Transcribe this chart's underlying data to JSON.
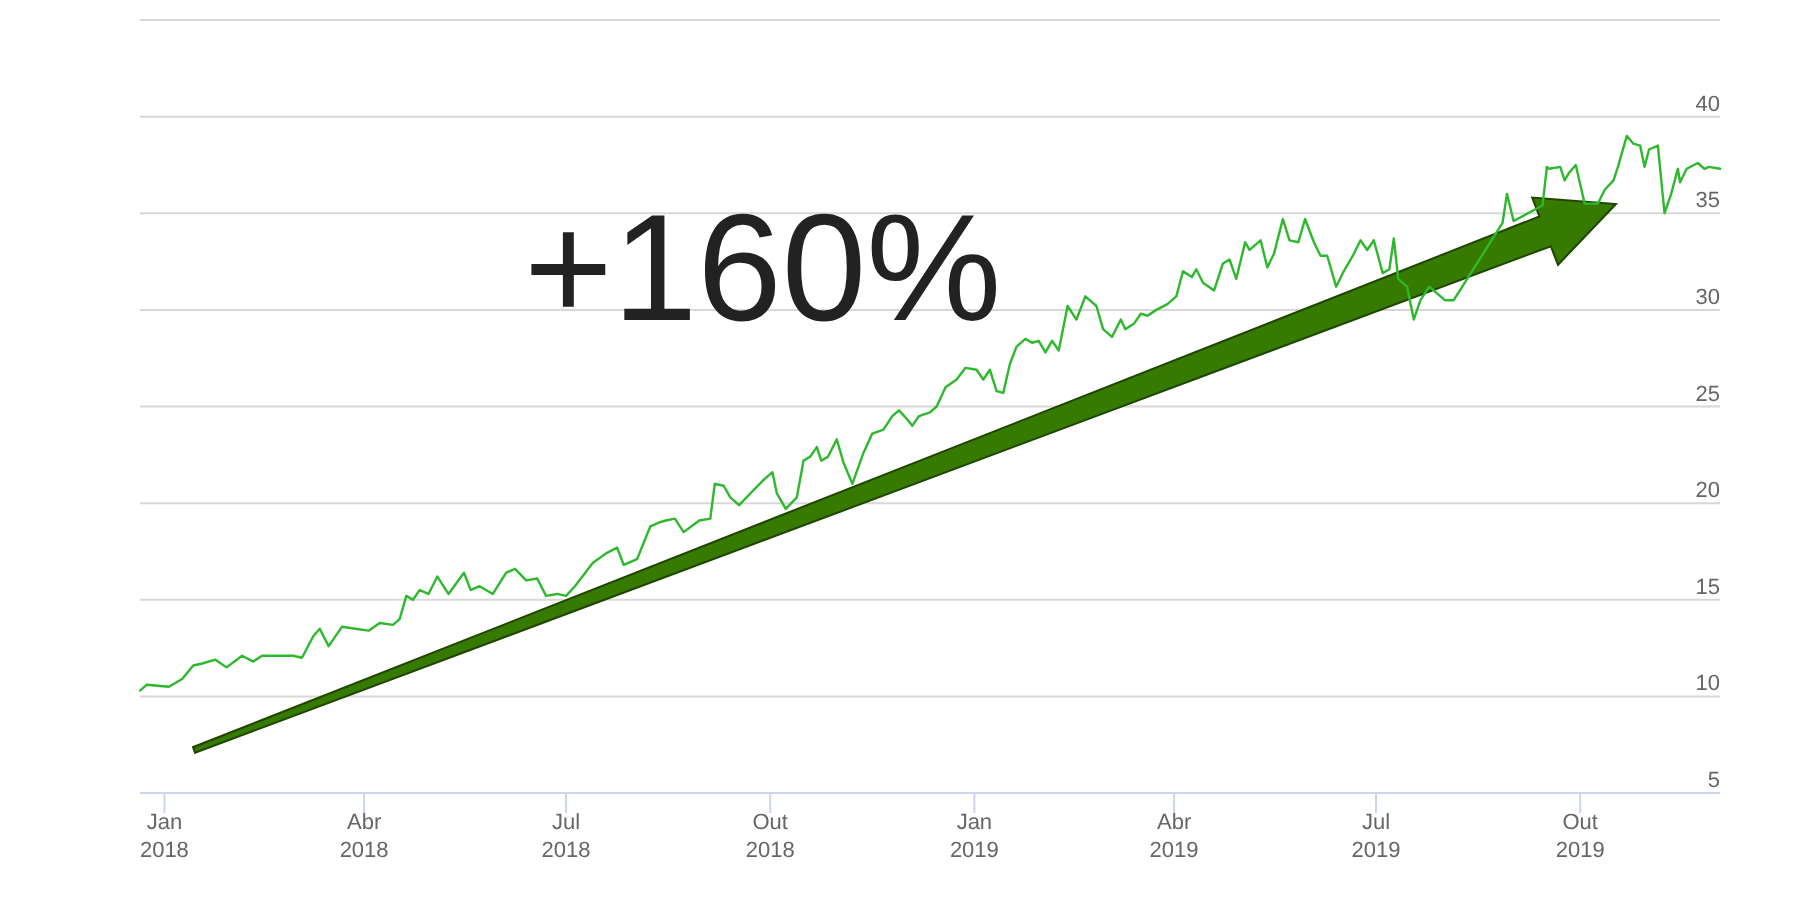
{
  "chart_data": {
    "type": "line",
    "annotations": [
      "+160%"
    ],
    "x": [
      "2017-12-21",
      "2017-12-24",
      "2018-01-03",
      "2018-01-09",
      "2018-01-14",
      "2018-01-18",
      "2018-01-24",
      "2018-01-29",
      "2018-02-05",
      "2018-02-10",
      "2018-02-14",
      "2018-02-28",
      "2018-03-04",
      "2018-03-09",
      "2018-03-12",
      "2018-03-16",
      "2018-03-22",
      "2018-03-28",
      "2018-04-03",
      "2018-04-08",
      "2018-04-14",
      "2018-04-17",
      "2018-04-20",
      "2018-04-23",
      "2018-04-26",
      "2018-04-30",
      "2018-05-04",
      "2018-05-09",
      "2018-05-16",
      "2018-05-19",
      "2018-05-23",
      "2018-05-29",
      "2018-06-04",
      "2018-06-08",
      "2018-06-13",
      "2018-06-18",
      "2018-06-22",
      "2018-06-27",
      "2018-07-01",
      "2018-07-05",
      "2018-07-13",
      "2018-07-19",
      "2018-07-24",
      "2018-07-27",
      "2018-08-02",
      "2018-08-08",
      "2018-08-12",
      "2018-08-15",
      "2018-08-19",
      "2018-08-23",
      "2018-08-30",
      "2018-09-04",
      "2018-09-06",
      "2018-09-10",
      "2018-09-13",
      "2018-09-17",
      "2018-09-22",
      "2018-09-28",
      "2018-10-02",
      "2018-10-04",
      "2018-10-08",
      "2018-10-13",
      "2018-10-16",
      "2018-10-19",
      "2018-10-22",
      "2018-10-24",
      "2018-10-27",
      "2018-10-31",
      "2018-11-03",
      "2018-11-07",
      "2018-11-12",
      "2018-11-16",
      "2018-11-21",
      "2018-11-25",
      "2018-11-28",
      "2018-12-02",
      "2018-12-04",
      "2018-12-07",
      "2018-12-12",
      "2018-12-15",
      "2018-12-19",
      "2018-12-24",
      "2018-12-28",
      "2019-01-02",
      "2019-01-05",
      "2019-01-08",
      "2019-01-11",
      "2019-01-14",
      "2019-01-17",
      "2019-01-20",
      "2019-01-24",
      "2019-01-27",
      "2019-01-30",
      "2019-02-02",
      "2019-02-05",
      "2019-02-08",
      "2019-02-12",
      "2019-02-16",
      "2019-02-20",
      "2019-02-25",
      "2019-02-28",
      "2019-03-04",
      "2019-03-08",
      "2019-03-10",
      "2019-03-14",
      "2019-03-17",
      "2019-03-20",
      "2019-03-24",
      "2019-03-29",
      "2019-04-02",
      "2019-04-05",
      "2019-04-09",
      "2019-04-11",
      "2019-04-14",
      "2019-04-19",
      "2019-04-23",
      "2019-04-26",
      "2019-04-29",
      "2019-05-03",
      "2019-05-05",
      "2019-05-10",
      "2019-05-13",
      "2019-05-16",
      "2019-05-20",
      "2019-05-23",
      "2019-05-27",
      "2019-05-30",
      "2019-06-03",
      "2019-06-06",
      "2019-06-09",
      "2019-06-13",
      "2019-06-16",
      "2019-06-21",
      "2019-06-24",
      "2019-06-27",
      "2019-06-30",
      "2019-07-04",
      "2019-07-07",
      "2019-07-09",
      "2019-07-11",
      "2019-07-15",
      "2019-07-18",
      "2019-07-21",
      "2019-07-25",
      "2019-08-01",
      "2019-08-05",
      "2019-08-27",
      "2019-08-29",
      "2019-09-01",
      "2019-09-14",
      "2019-09-16",
      "2019-09-17",
      "2019-09-22",
      "2019-09-24",
      "2019-09-26",
      "2019-09-29",
      "2019-10-03",
      "2019-10-09",
      "2019-10-12",
      "2019-10-16",
      "2019-10-18",
      "2019-10-22",
      "2019-10-25",
      "2019-10-28",
      "2019-10-30",
      "2019-11-01",
      "2019-11-05",
      "2019-11-08",
      "2019-11-11",
      "2019-11-14",
      "2019-11-15",
      "2019-11-18",
      "2019-11-23",
      "2019-11-26",
      "2019-11-28",
      "2019-12-03"
    ],
    "series": [
      {
        "color": "#2db82d",
        "values": [
          10.3,
          10.6,
          10.5,
          10.9,
          11.6,
          11.7,
          11.9,
          11.5,
          12.1,
          11.8,
          12.1,
          12.1,
          12.0,
          13.1,
          13.5,
          12.6,
          13.6,
          13.5,
          13.4,
          13.8,
          13.7,
          14.0,
          15.2,
          15.0,
          15.5,
          15.3,
          16.2,
          15.3,
          16.4,
          15.5,
          15.7,
          15.3,
          16.4,
          16.6,
          16.0,
          16.1,
          15.2,
          15.3,
          15.2,
          15.7,
          16.9,
          17.4,
          17.7,
          16.8,
          17.1,
          18.8,
          19.0,
          19.1,
          19.2,
          18.5,
          19.1,
          19.2,
          21.0,
          20.9,
          20.3,
          19.9,
          20.5,
          21.2,
          21.6,
          20.5,
          19.7,
          20.3,
          22.2,
          22.4,
          22.9,
          22.2,
          22.4,
          23.3,
          22.1,
          21.0,
          22.6,
          23.6,
          23.8,
          24.5,
          24.8,
          24.3,
          24.0,
          24.5,
          24.7,
          25.0,
          26.0,
          26.4,
          27.0,
          26.9,
          26.4,
          26.9,
          25.8,
          25.7,
          27.2,
          28.1,
          28.5,
          28.3,
          28.4,
          27.8,
          28.4,
          27.9,
          30.2,
          29.5,
          30.7,
          30.2,
          29.0,
          28.6,
          29.5,
          29.0,
          29.3,
          29.8,
          29.7,
          30.0,
          30.3,
          30.7,
          32.0,
          31.7,
          32.1,
          31.4,
          31.0,
          32.4,
          32.6,
          31.6,
          33.5,
          33.1,
          33.6,
          32.2,
          32.9,
          34.7,
          33.6,
          33.5,
          34.7,
          33.5,
          32.8,
          32.8,
          31.2,
          31.9,
          32.9,
          33.6,
          33.1,
          33.6,
          31.9,
          32.1,
          33.7,
          31.6,
          31.2,
          29.5,
          30.5,
          31.2,
          30.5,
          30.5,
          34.5,
          36.0,
          34.6,
          35.4,
          37.4,
          37.3,
          37.4,
          36.7,
          37.1,
          37.5,
          35.5,
          35.5,
          36.2,
          36.7,
          37.4,
          39.0,
          38.6,
          38.5,
          37.4,
          38.3,
          38.5,
          35.0,
          36.0,
          37.3,
          36.6,
          37.3,
          37.6,
          37.3,
          37.4,
          37.3
        ]
      }
    ],
    "xlim": [
      "2017-12-21",
      "2019-12-03"
    ],
    "xticks": [
      {
        "value": "2018-01-01",
        "label": "Jan 2018"
      },
      {
        "value": "2018-04-01",
        "label": "Abr 2018"
      },
      {
        "value": "2018-07-01",
        "label": "Jul 2018"
      },
      {
        "value": "2018-10-01",
        "label": "Out 2018"
      },
      {
        "value": "2019-01-01",
        "label": "Jan 2019"
      },
      {
        "value": "2019-04-01",
        "label": "Abr 2019"
      },
      {
        "value": "2019-07-01",
        "label": "Jul 2019"
      },
      {
        "value": "2019-10-01",
        "label": "Out 2019"
      }
    ],
    "ylim": [
      5,
      45
    ],
    "yticks": [
      5,
      10,
      15,
      20,
      25,
      30,
      35,
      40,
      {
        "value": 45,
        "label": null
      }
    ],
    "grid": "y"
  }
}
